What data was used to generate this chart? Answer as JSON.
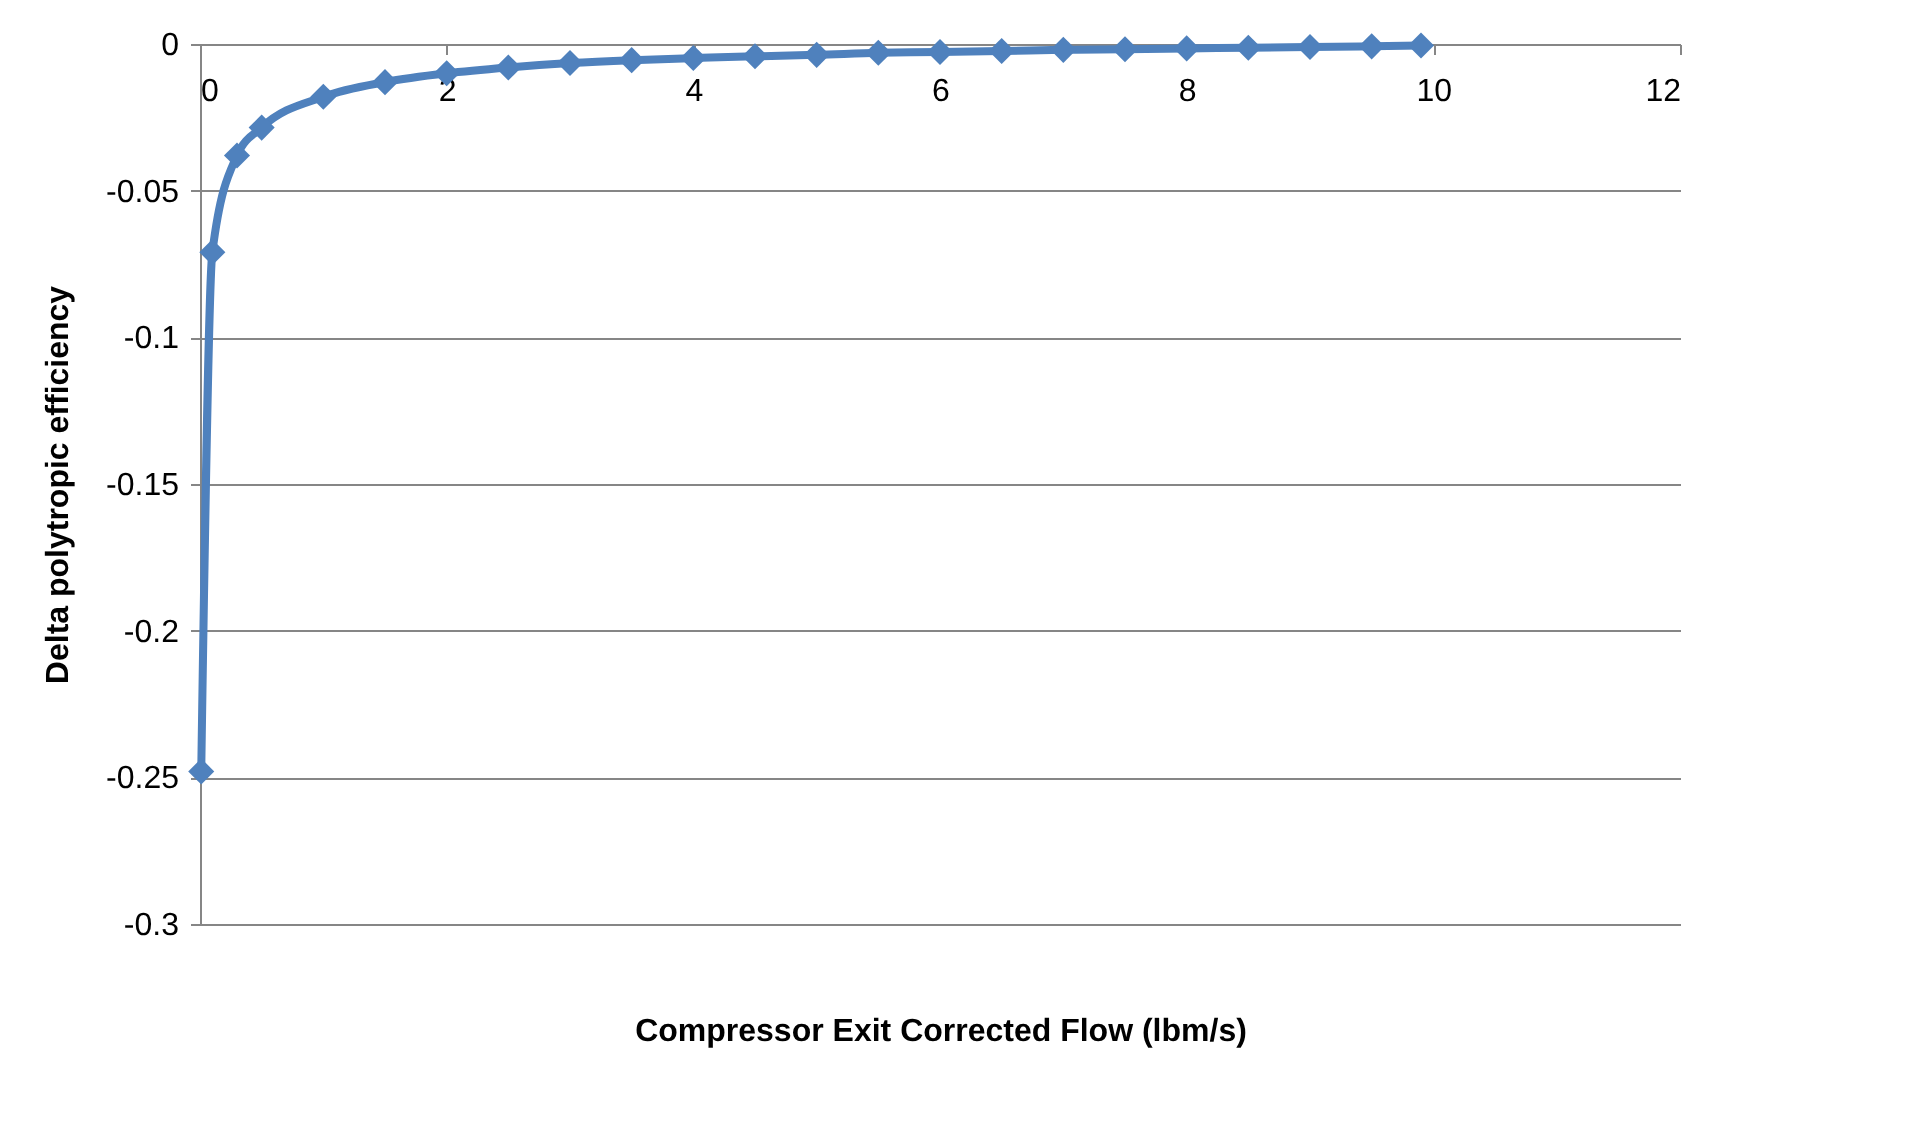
{
  "chart_data": {
    "type": "line",
    "xlabel": "Compressor Exit Corrected Flow (lbm/s)",
    "ylabel": "Delta polytropic efficiency",
    "x": [
      0.01,
      0.1,
      0.3,
      0.5,
      1,
      1.5,
      2,
      2.5,
      3,
      3.5,
      4,
      4.5,
      5,
      5.5,
      6,
      6.5,
      7,
      7.5,
      8,
      8.5,
      9,
      9.5,
      9.9
    ],
    "series": [
      {
        "color": "#4f81bd",
        "values": [
          -0.248,
          -0.071,
          -0.038,
          -0.0285,
          -0.018,
          -0.013,
          -0.01,
          -0.008,
          -0.0065,
          -0.0055,
          -0.0048,
          -0.0042,
          -0.0037,
          -0.003,
          -0.0027,
          -0.0024,
          -0.002,
          -0.0018,
          -0.0015,
          -0.0013,
          -0.001,
          -0.0008,
          -0.0005
        ]
      }
    ],
    "xlim": [
      0,
      12
    ],
    "xticks": [
      0,
      2,
      4,
      6,
      8,
      10,
      12
    ],
    "ylim": [
      -0.3,
      0
    ],
    "yticks": [
      -0.3,
      -0.25,
      -0.2,
      -0.15,
      -0.1,
      -0.05,
      0
    ],
    "grid": "y",
    "marker": "diamond",
    "line_style": "solid"
  }
}
